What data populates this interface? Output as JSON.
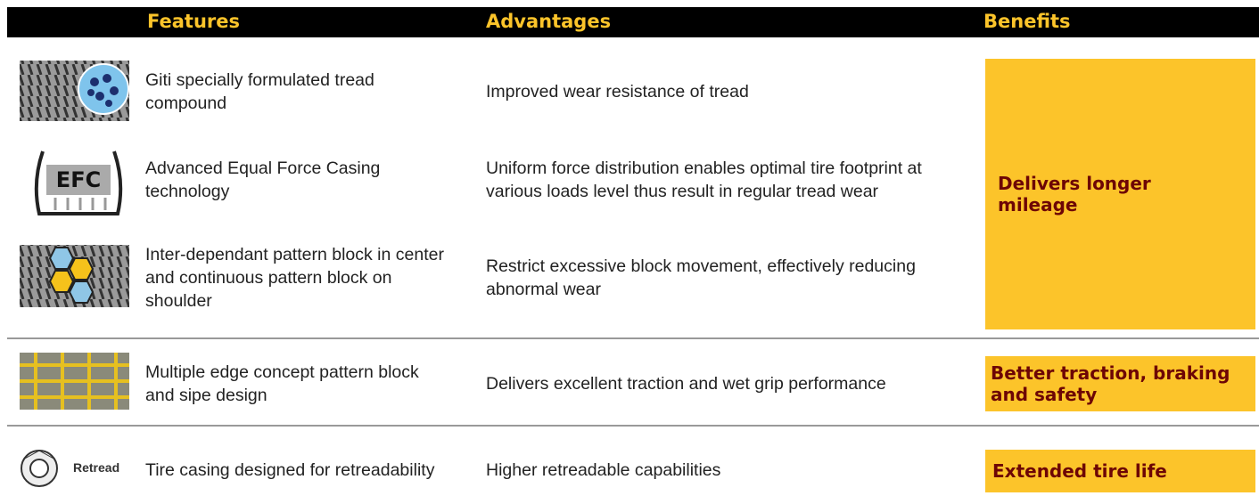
{
  "header": {
    "columns": [
      "Features",
      "Advantages",
      "Benefits"
    ]
  },
  "groups": [
    {
      "rows": [
        {
          "feature": "Giti specially formulated tread compound",
          "advantage": "Improved wear resistance of tread"
        },
        {
          "icon_label": "EFC",
          "feature": "Advanced Equal Force Casing technology",
          "advantage": "Uniform force distribution enables optimal tire footprint at various loads level thus result in regular tread wear"
        },
        {
          "feature": "Inter-dependant pattern block in center and continuous pattern block on shoulder",
          "advantage": "Restrict excessive block movement, effectively reducing abnormal wear"
        }
      ],
      "benefit": "Delivers longer mileage"
    },
    {
      "rows": [
        {
          "feature": "Multiple edge concept pattern block and sipe design",
          "advantage": "Delivers excellent traction and wet grip performance"
        }
      ],
      "benefit": "Better traction, braking and safety"
    },
    {
      "rows": [
        {
          "icon_label": "Retread",
          "feature": "Tire casing designed for retreadability",
          "advantage": "Higher retreadable capabilities"
        }
      ],
      "benefit": "Extended tire life"
    }
  ]
}
